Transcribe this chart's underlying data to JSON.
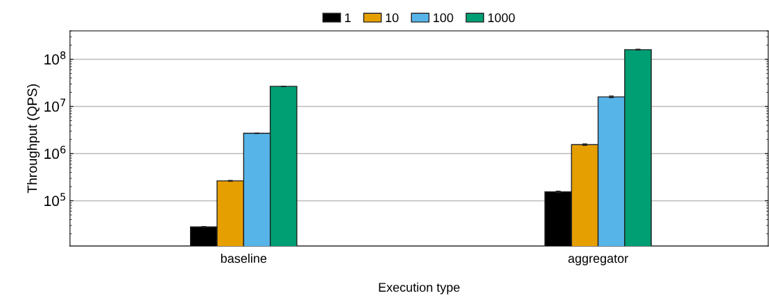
{
  "chart_data": {
    "type": "bar",
    "xlabel": "Execution type",
    "ylabel": "Throughput (QPS)",
    "categories": [
      "baseline",
      "aggregator"
    ],
    "series": [
      {
        "name": "1",
        "color": "#000000",
        "values": [
          28000,
          155000
        ],
        "errors": [
          500,
          5000
        ]
      },
      {
        "name": "10",
        "color": "#e69f00",
        "values": [
          265000,
          1550000
        ],
        "errors": [
          5000,
          50000
        ]
      },
      {
        "name": "100",
        "color": "#56b4e9",
        "values": [
          2700000,
          16000000
        ],
        "errors": [
          30000,
          600000
        ]
      },
      {
        "name": "1000",
        "color": "#009e73",
        "values": [
          26700000,
          160000000
        ],
        "errors": [
          300000,
          3000000
        ]
      }
    ],
    "log": "y",
    "ylim": [
      11000,
      400000000
    ],
    "yticks": [
      {
        "value": 100000,
        "label": "10$^{5}$"
      },
      {
        "value": 1000000,
        "label": "10$^{6}$"
      },
      {
        "value": 10000000,
        "label": "10$^{7}$"
      },
      {
        "value": 100000000,
        "label": "10$^{8}$"
      }
    ],
    "grid": "y",
    "legend": "top"
  }
}
